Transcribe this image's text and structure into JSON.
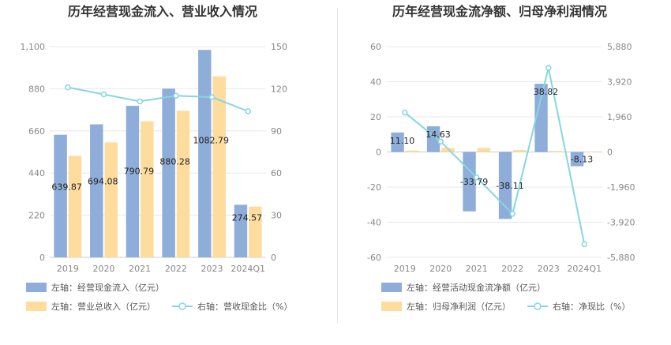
{
  "chart_data": [
    {
      "type": "bar",
      "title": "历年经营现金流入、营业收入情况",
      "categories": [
        "2019",
        "2020",
        "2021",
        "2022",
        "2023",
        "2024Q1"
      ],
      "left_axis": {
        "min": 0,
        "max": 1100,
        "ticks": [
          "0",
          "220",
          "440",
          "660",
          "880",
          "1,100"
        ]
      },
      "right_axis": {
        "min": 0,
        "max": 150,
        "ticks": [
          "0",
          "30",
          "60",
          "90",
          "120",
          "150"
        ]
      },
      "grid": true,
      "legend_position": "bottom",
      "series": [
        {
          "name": "左轴：经营现金流入（亿元）",
          "kind": "bar",
          "axis": "left",
          "color": "#8eadd9",
          "values": [
            639.87,
            694.08,
            790.79,
            880.28,
            1082.79,
            274.57
          ],
          "labels": [
            "639.87",
            "694.08",
            "790.79",
            "880.28",
            "1082.79",
            "274.57"
          ]
        },
        {
          "name": "左轴：营业总收入（亿元）",
          "kind": "bar",
          "axis": "left",
          "color": "#fddc9e",
          "values": [
            530,
            600,
            710,
            765,
            945,
            265
          ]
        },
        {
          "name": "右轴：营收现金比（%）",
          "kind": "line",
          "axis": "right",
          "color": "#86d6df",
          "values": [
            121,
            116,
            111,
            115,
            114,
            104
          ]
        }
      ]
    },
    {
      "type": "bar",
      "title": "历年经营现金流净额、归母净利润情况",
      "categories": [
        "2019",
        "2020",
        "2021",
        "2022",
        "2023",
        "2024Q1"
      ],
      "left_axis": {
        "min": -60,
        "max": 60,
        "ticks": [
          "-60",
          "-40",
          "-20",
          "0",
          "20",
          "40",
          "60"
        ]
      },
      "right_axis": {
        "min": -5880,
        "max": 5880,
        "ticks": [
          "-5,880",
          "-3,920",
          "-1,960",
          "0",
          "1,960",
          "3,920",
          "5,880"
        ]
      },
      "grid": true,
      "legend_position": "bottom",
      "series": [
        {
          "name": "左轴：经营活动现金流净额（亿元）",
          "kind": "bar",
          "axis": "left",
          "color": "#8eadd9",
          "values": [
            11.1,
            14.63,
            -33.79,
            -38.11,
            38.82,
            -8.13
          ],
          "labels": [
            "11.10",
            "14.63",
            "-33.79",
            "-38.11",
            "38.82",
            "-8.13"
          ]
        },
        {
          "name": "左轴：归母净利润（亿元）",
          "kind": "bar",
          "axis": "left",
          "color": "#fddc9e",
          "values": [
            0.8,
            2.3,
            2.3,
            1.1,
            0.6,
            0.2
          ]
        },
        {
          "name": "右轴：净现比（%）",
          "kind": "line",
          "axis": "right",
          "color": "#86d6df",
          "values": [
            2200,
            580,
            -1420,
            -3450,
            4700,
            -5150
          ]
        }
      ]
    }
  ]
}
